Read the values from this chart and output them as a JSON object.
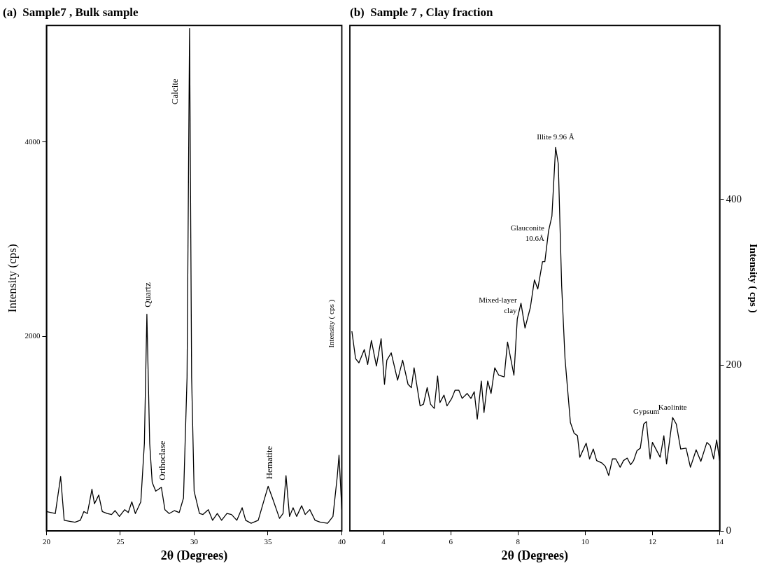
{
  "chart_data": [
    {
      "type": "line",
      "title": "(a)  Sample7 , Bulk sample",
      "xlabel": "2θ (Degrees)",
      "ylabel": "Intensity (cps)",
      "xlim": [
        20,
        40
      ],
      "xticks": [
        20,
        25,
        30,
        35,
        40
      ],
      "ylim": [
        0,
        5200
      ],
      "yticks": [
        2000,
        4000
      ],
      "grid": false,
      "legend": false,
      "marker": "none",
      "line_style": "solid",
      "annotations": [
        {
          "text": "Quartz",
          "x": 26.8,
          "y": 2230
        },
        {
          "text": "Calcite",
          "x": 29.66,
          "y": 4520
        },
        {
          "text": "Orthoclase",
          "x": 27.78,
          "y": 450
        },
        {
          "text": "Hematite",
          "x": 35.01,
          "y": 460
        },
        "Intensity ( cps )"
      ],
      "series": [
        {
          "color": "#000000",
          "x": [
            20.0,
            20.31,
            20.6,
            20.96,
            21.2,
            21.57,
            21.93,
            22.29,
            22.53,
            22.77,
            23.08,
            23.25,
            23.54,
            23.78,
            24.1,
            24.41,
            24.65,
            24.94,
            25.3,
            25.54,
            25.78,
            26.02,
            26.39,
            26.63,
            26.8,
            26.99,
            27.16,
            27.4,
            27.78,
            28.02,
            28.31,
            28.67,
            28.99,
            29.28,
            29.52,
            29.69,
            29.83,
            30.0,
            30.36,
            30.6,
            30.96,
            31.25,
            31.57,
            31.86,
            32.22,
            32.53,
            32.89,
            33.25,
            33.49,
            33.86,
            34.34,
            34.7,
            35.01,
            35.3,
            35.78,
            36.02,
            36.22,
            36.46,
            36.7,
            36.94,
            37.28,
            37.52,
            37.83,
            38.19,
            38.55,
            39.04,
            39.4,
            39.69,
            39.81,
            40.0
          ],
          "values": [
            200,
            190,
            180,
            560,
            110,
            100,
            90,
            110,
            200,
            180,
            430,
            280,
            370,
            200,
            180,
            170,
            210,
            150,
            220,
            190,
            300,
            180,
            300,
            900,
            2230,
            900,
            500,
            410,
            450,
            220,
            180,
            210,
            190,
            340,
            1580,
            5170,
            1580,
            410,
            180,
            170,
            220,
            110,
            180,
            110,
            180,
            170,
            110,
            240,
            110,
            80,
            110,
            300,
            460,
            340,
            130,
            180,
            570,
            150,
            240,
            150,
            260,
            170,
            220,
            110,
            90,
            80,
            150,
            560,
            780,
            220
          ]
        }
      ]
    },
    {
      "type": "line",
      "title": "(b)  Sample 7 , Clay fraction",
      "xlabel": "2θ (Degrees)",
      "ylabel": "Intensity ( cps )",
      "xlim": [
        3,
        14
      ],
      "xticks": [
        4,
        6,
        8,
        10,
        12,
        14
      ],
      "ylim": [
        0,
        610
      ],
      "yticks": [
        0,
        200,
        400
      ],
      "grid": false,
      "legend": false,
      "marker": "none",
      "line_style": "solid",
      "annotations": [
        {
          "text": "Illite 9.96 Å",
          "x": 9.12,
          "y": 463
        },
        {
          "text": "Glauconite\n10.6Å",
          "x": 8.91,
          "y": 362
        },
        {
          "text": "Mixed-layer\nclay",
          "x": 8.09,
          "y": 275
        },
        {
          "text": "Gypsum",
          "x": 11.82,
          "y": 132
        },
        {
          "text": "Kaolinite",
          "x": 12.6,
          "y": 137
        }
      ],
      "series": [
        {
          "color": "#000000",
          "x": [
            3.06,
            3.17,
            3.27,
            3.43,
            3.53,
            3.64,
            3.79,
            3.93,
            4.03,
            4.1,
            4.23,
            4.42,
            4.57,
            4.73,
            4.83,
            4.91,
            5.09,
            5.19,
            5.3,
            5.4,
            5.51,
            5.61,
            5.68,
            5.8,
            5.89,
            6.03,
            6.13,
            6.24,
            6.34,
            6.49,
            6.6,
            6.7,
            6.79,
            6.91,
            6.99,
            7.1,
            7.2,
            7.31,
            7.43,
            7.59,
            7.69,
            7.88,
            7.98,
            8.09,
            8.21,
            8.37,
            8.49,
            8.59,
            8.73,
            8.8,
            8.91,
            9.01,
            9.12,
            9.2,
            9.3,
            9.4,
            9.56,
            9.67,
            9.77,
            9.84,
            10.03,
            10.13,
            10.24,
            10.34,
            10.5,
            10.6,
            10.7,
            10.81,
            10.91,
            11.04,
            11.14,
            11.25,
            11.35,
            11.44,
            11.54,
            11.64,
            11.74,
            11.82,
            11.93,
            12.0,
            12.23,
            12.34,
            12.42,
            12.6,
            12.71,
            12.84,
            13.0,
            13.13,
            13.3,
            13.44,
            13.62,
            13.72,
            13.82,
            13.91,
            14.0
          ],
          "values": [
            241,
            208,
            203,
            219,
            201,
            230,
            199,
            232,
            177,
            206,
            215,
            182,
            206,
            177,
            173,
            197,
            151,
            153,
            173,
            153,
            148,
            187,
            155,
            164,
            151,
            160,
            170,
            170,
            160,
            166,
            160,
            168,
            135,
            181,
            143,
            181,
            166,
            197,
            188,
            186,
            228,
            188,
            256,
            275,
            245,
            270,
            303,
            292,
            325,
            325,
            362,
            380,
            463,
            443,
            296,
            208,
            131,
            118,
            115,
            89,
            106,
            87,
            99,
            85,
            82,
            78,
            67,
            87,
            87,
            77,
            85,
            88,
            80,
            85,
            97,
            100,
            129,
            132,
            87,
            107,
            89,
            115,
            81,
            137,
            129,
            99,
            100,
            77,
            98,
            84,
            107,
            103,
            87,
            110,
            85
          ]
        }
      ]
    }
  ]
}
